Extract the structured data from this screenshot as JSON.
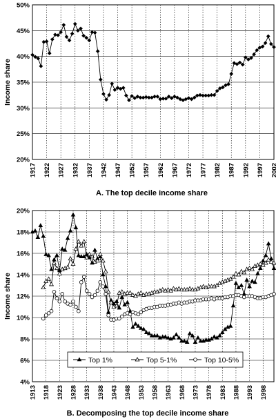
{
  "chart_data": [
    {
      "type": "line",
      "caption": "A. The top decile income share",
      "ylabel": "Income share",
      "xlabel": "",
      "ylim": [
        20,
        50
      ],
      "xlim": [
        1917,
        2002
      ],
      "y_ticks": [
        "20%",
        "25%",
        "30%",
        "35%",
        "40%",
        "45%",
        "50%"
      ],
      "x_ticks": [
        "1917",
        "1922",
        "1927",
        "1932",
        "1937",
        "1942",
        "1947",
        "1952",
        "1957",
        "1962",
        "1967",
        "1972",
        "1977",
        "1982",
        "1987",
        "1992",
        "1997",
        "2002"
      ],
      "grid": "horizontal solid, vertical dotted",
      "marker_color": "#000000",
      "series": [
        {
          "marker": "filled-diamond",
          "x": [
            1917,
            1918,
            1919,
            1920,
            1921,
            1922,
            1923,
            1924,
            1925,
            1926,
            1927,
            1928,
            1929,
            1930,
            1931,
            1932,
            1933,
            1934,
            1935,
            1936,
            1937,
            1938,
            1939,
            1940,
            1941,
            1942,
            1943,
            1944,
            1945,
            1946,
            1947,
            1948,
            1949,
            1950,
            1951,
            1952,
            1953,
            1954,
            1955,
            1956,
            1957,
            1958,
            1959,
            1960,
            1961,
            1962,
            1963,
            1964,
            1965,
            1966,
            1967,
            1968,
            1969,
            1970,
            1971,
            1972,
            1973,
            1974,
            1975,
            1976,
            1977,
            1978,
            1979,
            1980,
            1981,
            1982,
            1983,
            1984,
            1985,
            1986,
            1987,
            1988,
            1989,
            1990,
            1991,
            1992,
            1993,
            1994,
            1995,
            1996,
            1997,
            1998,
            1999,
            2000,
            2001,
            2002
          ],
          "y": [
            40.3,
            39.9,
            39.6,
            38.1,
            42.8,
            42.9,
            40.6,
            43.3,
            44.2,
            44.1,
            44.7,
            46.1,
            43.8,
            43.1,
            44.4,
            46.3,
            45.0,
            45.4,
            44.0,
            43.6,
            43.1,
            44.7,
            44.6,
            41.0,
            35.5,
            32.7,
            31.6,
            32.5,
            34.7,
            33.5,
            33.9,
            33.7,
            33.9,
            32.4,
            31.5,
            32.3,
            31.9,
            32.2,
            32.0,
            32.0,
            32.1,
            32.0,
            32.0,
            32.2,
            32.2,
            31.7,
            31.8,
            31.8,
            32.2,
            31.9,
            32.2,
            32.0,
            31.7,
            31.5,
            31.7,
            31.9,
            31.7,
            32.0,
            32.4,
            32.5,
            32.4,
            32.4,
            32.4,
            32.5,
            32.5,
            33.3,
            33.8,
            34.0,
            34.4,
            34.6,
            36.6,
            38.7,
            38.5,
            38.8,
            38.4,
            39.8,
            39.4,
            39.7,
            40.4,
            41.2,
            41.7,
            41.9,
            42.6,
            43.9,
            42.4,
            41.8
          ]
        }
      ]
    },
    {
      "type": "line",
      "caption": "B. Decomposing the top decile income share",
      "ylabel": "Income share",
      "xlabel": "",
      "ylim": [
        4,
        20
      ],
      "xlim": [
        1913,
        2002
      ],
      "y_ticks": [
        "4%",
        "6%",
        "8%",
        "10%",
        "12%",
        "14%",
        "16%",
        "18%",
        "20%"
      ],
      "x_ticks": [
        "1913",
        "1918",
        "1923",
        "1928",
        "1933",
        "1938",
        "1943",
        "1948",
        "1953",
        "1958",
        "1963",
        "1968",
        "1973",
        "1978",
        "1983",
        "1988",
        "1993",
        "1998"
      ],
      "grid": "horizontal solid, vertical dotted",
      "legend_position": "bottom",
      "series": [
        {
          "name": "Top 1%",
          "marker": "filled-triangle",
          "x": [
            1913,
            1914,
            1915,
            1916,
            1917,
            1918,
            1919,
            1920,
            1921,
            1922,
            1923,
            1924,
            1925,
            1926,
            1927,
            1928,
            1929,
            1930,
            1931,
            1932,
            1933,
            1934,
            1935,
            1936,
            1937,
            1938,
            1939,
            1940,
            1941,
            1942,
            1943,
            1944,
            1945,
            1946,
            1947,
            1948,
            1949,
            1950,
            1951,
            1952,
            1953,
            1954,
            1955,
            1956,
            1957,
            1958,
            1959,
            1960,
            1961,
            1962,
            1963,
            1964,
            1965,
            1966,
            1967,
            1968,
            1969,
            1970,
            1971,
            1972,
            1973,
            1974,
            1975,
            1976,
            1977,
            1978,
            1979,
            1980,
            1981,
            1982,
            1983,
            1984,
            1985,
            1986,
            1987,
            1988,
            1989,
            1990,
            1991,
            1992,
            1993,
            1994,
            1995,
            1996,
            1997,
            1998,
            1999,
            2000,
            2001,
            2002
          ],
          "y": [
            18.0,
            18.1,
            17.5,
            18.6,
            17.6,
            15.9,
            15.8,
            14.5,
            15.4,
            15.8,
            14.4,
            16.4,
            16.3,
            17.4,
            18.1,
            19.6,
            18.4,
            15.8,
            15.7,
            15.7,
            15.9,
            15.6,
            15.1,
            16.3,
            15.5,
            15.7,
            14.0,
            12.9,
            10.5,
            11.6,
            11.3,
            11.5,
            10.9,
            11.9,
            11.2,
            11.4,
            10.6,
            9.1,
            9.4,
            9.2,
            9.0,
            8.9,
            8.6,
            8.5,
            8.3,
            8.3,
            8.3,
            8.1,
            8.2,
            8.2,
            8.1,
            8.0,
            8.1,
            8.4,
            8.1,
            7.8,
            7.8,
            7.7,
            8.5,
            8.3,
            7.7,
            8.1,
            7.8,
            7.8,
            7.9,
            7.9,
            8.0,
            8.2,
            8.1,
            8.3,
            8.6,
            8.9,
            9.1,
            9.2,
            11.1,
            13.2,
            12.8,
            13.0,
            12.2,
            13.5,
            12.9,
            13.4,
            13.3,
            14.1,
            14.6,
            15.3,
            15.8,
            16.9,
            15.5,
            14.6
          ]
        },
        {
          "name": "Top 5-1%",
          "marker": "open-triangle",
          "x": [
            1917,
            1918,
            1919,
            1920,
            1921,
            1922,
            1923,
            1924,
            1925,
            1926,
            1927,
            1928,
            1929,
            1930,
            1931,
            1932,
            1933,
            1934,
            1935,
            1936,
            1937,
            1938,
            1939,
            1940,
            1941,
            1942,
            1943,
            1944,
            1945,
            1946,
            1947,
            1948,
            1949,
            1950,
            1951,
            1952,
            1953,
            1954,
            1955,
            1956,
            1957,
            1958,
            1959,
            1960,
            1961,
            1962,
            1963,
            1964,
            1965,
            1966,
            1967,
            1968,
            1969,
            1970,
            1971,
            1972,
            1973,
            1974,
            1975,
            1976,
            1977,
            1978,
            1979,
            1980,
            1981,
            1982,
            1983,
            1984,
            1985,
            1986,
            1987,
            1988,
            1989,
            1990,
            1991,
            1992,
            1993,
            1994,
            1995,
            1996,
            1997,
            1998,
            1999,
            2000,
            2001,
            2002
          ],
          "y": [
            12.8,
            13.4,
            13.6,
            13.1,
            15.1,
            14.6,
            14.1,
            14.5,
            14.6,
            14.7,
            15.5,
            15.0,
            16.4,
            17.1,
            16.7,
            17.1,
            15.6,
            15.9,
            15.7,
            15.2,
            15.3,
            15.9,
            15.3,
            14.3,
            12.4,
            11.4,
            11.0,
            11.1,
            12.3,
            12.4,
            12.2,
            12.3,
            12.3,
            12.1,
            12.0,
            12.2,
            12.3,
            12.1,
            12.2,
            12.2,
            12.3,
            12.4,
            12.4,
            12.5,
            12.6,
            12.5,
            12.6,
            12.5,
            12.7,
            12.6,
            12.7,
            12.6,
            12.6,
            12.6,
            12.7,
            12.6,
            12.6,
            12.7,
            12.8,
            12.9,
            12.8,
            12.9,
            12.9,
            12.9,
            13.0,
            13.2,
            13.3,
            13.4,
            13.5,
            13.6,
            13.8,
            14.1,
            14.0,
            14.3,
            14.2,
            14.5,
            14.6,
            14.5,
            14.8,
            14.9,
            15.0,
            14.9,
            15.1,
            15.4,
            15.2,
            15.1
          ]
        },
        {
          "name": "Top 10-5%",
          "marker": "open-circle",
          "x": [
            1917,
            1918,
            1919,
            1920,
            1921,
            1922,
            1923,
            1924,
            1925,
            1926,
            1927,
            1928,
            1929,
            1930,
            1931,
            1932,
            1933,
            1934,
            1935,
            1936,
            1937,
            1938,
            1939,
            1940,
            1941,
            1942,
            1943,
            1944,
            1945,
            1946,
            1947,
            1948,
            1949,
            1950,
            1951,
            1952,
            1953,
            1954,
            1955,
            1956,
            1957,
            1958,
            1959,
            1960,
            1961,
            1962,
            1963,
            1964,
            1965,
            1966,
            1967,
            1968,
            1969,
            1970,
            1971,
            1972,
            1973,
            1974,
            1975,
            1976,
            1977,
            1978,
            1979,
            1980,
            1981,
            1982,
            1983,
            1984,
            1985,
            1986,
            1987,
            1988,
            1989,
            1990,
            1991,
            1992,
            1993,
            1994,
            1995,
            1996,
            1997,
            1998,
            1999,
            2000,
            2001,
            2002
          ],
          "y": [
            9.9,
            10.2,
            10.4,
            10.6,
            12.4,
            11.8,
            11.5,
            12.2,
            11.5,
            11.3,
            11.2,
            11.5,
            11.0,
            10.6,
            13.3,
            13.8,
            12.5,
            12.2,
            11.9,
            12.1,
            12.5,
            13.3,
            12.9,
            12.2,
            10.2,
            9.8,
            9.8,
            9.9,
            9.9,
            10.1,
            10.3,
            10.4,
            10.3,
            10.5,
            10.4,
            10.3,
            10.5,
            10.7,
            10.8,
            10.9,
            10.9,
            11.0,
            11.0,
            11.1,
            11.1,
            11.1,
            11.2,
            11.2,
            11.3,
            11.3,
            11.4,
            11.3,
            11.4,
            11.4,
            11.5,
            11.5,
            11.6,
            11.6,
            11.6,
            11.7,
            11.7,
            11.7,
            11.8,
            11.7,
            11.8,
            11.8,
            11.8,
            11.9,
            11.9,
            12.0,
            12.0,
            12.1,
            12.1,
            12.0,
            11.9,
            12.0,
            12.0,
            12.0,
            11.9,
            11.8,
            11.8,
            11.9,
            11.9,
            12.0,
            12.1,
            12.2
          ]
        }
      ]
    }
  ]
}
